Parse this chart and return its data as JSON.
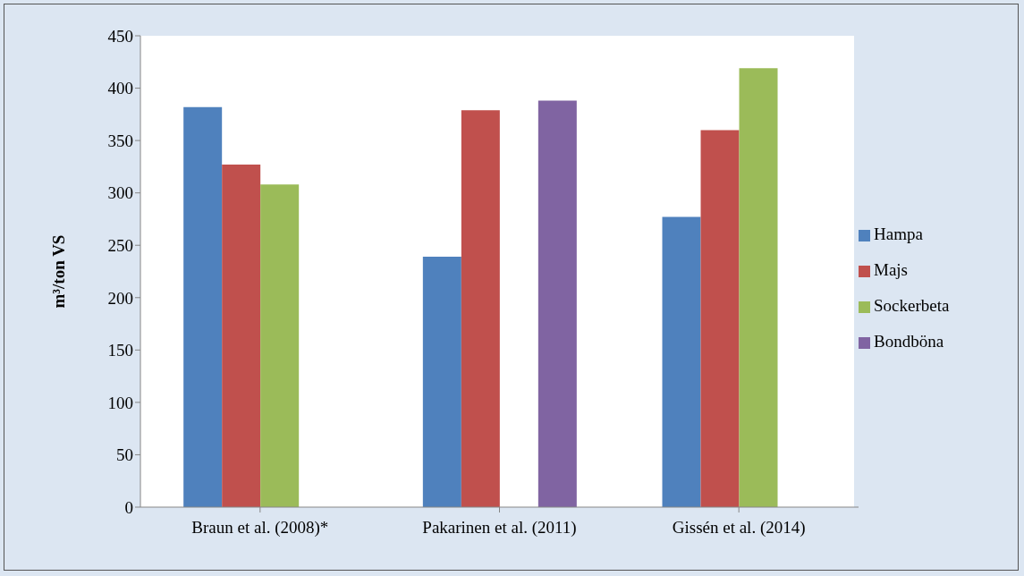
{
  "chart_data": {
    "type": "bar",
    "ylabel": "m³/ton VS",
    "categories": [
      "Braun et al. (2008)*",
      "Pakarinen et al. (2011)",
      "Gissén et al. (2014)"
    ],
    "series": [
      {
        "name": "Hampa",
        "color": "#4f81bd",
        "values": [
          382,
          239,
          277
        ]
      },
      {
        "name": "Majs",
        "color": "#c0504d",
        "values": [
          327,
          379,
          360
        ]
      },
      {
        "name": "Sockerbeta",
        "color": "#9bbb59",
        "values": [
          308,
          null,
          419
        ]
      },
      {
        "name": "Bondböna",
        "color": "#8064a2",
        "values": [
          null,
          388,
          null
        ]
      }
    ],
    "ylim": [
      0,
      450
    ],
    "yticks": [
      0,
      50,
      100,
      150,
      200,
      250,
      300,
      350,
      400,
      450
    ],
    "grid": false,
    "legend": "right"
  }
}
